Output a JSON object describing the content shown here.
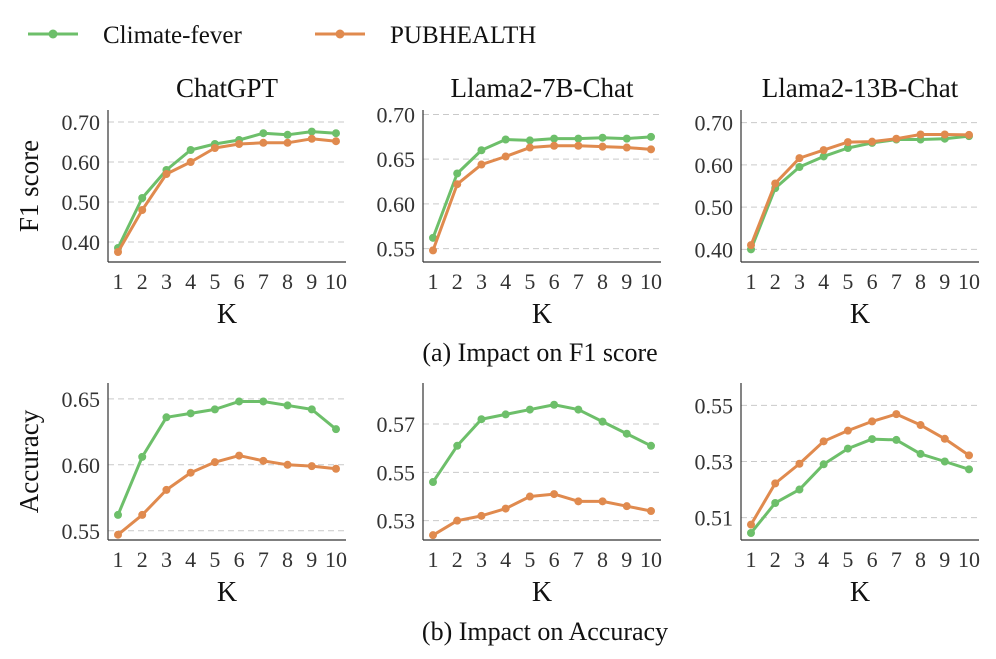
{
  "legend": {
    "items": [
      {
        "label": "Climate-fever",
        "color": "#6dbf6a"
      },
      {
        "label": "PUBHEALTH",
        "color": "#e08a4e"
      }
    ]
  },
  "row_captions": [
    "(a) Impact on F1 score",
    "(b) Impact on Accuracy"
  ],
  "chart_data": [
    {
      "type": "line",
      "title": "ChatGPT",
      "xlabel": "K",
      "ylabel": "F1 score",
      "x": [
        1,
        2,
        3,
        4,
        5,
        6,
        7,
        8,
        9,
        10
      ],
      "ylim": [
        0.35,
        0.73
      ],
      "yticks": [
        0.4,
        0.5,
        0.6,
        0.7
      ],
      "ytick_labels": [
        "0.40",
        "0.50",
        "0.60",
        "0.70"
      ],
      "series": [
        {
          "name": "Climate-fever",
          "values": [
            0.385,
            0.51,
            0.58,
            0.63,
            0.645,
            0.655,
            0.672,
            0.668,
            0.676,
            0.672
          ]
        },
        {
          "name": "PUBHEALTH",
          "values": [
            0.375,
            0.48,
            0.57,
            0.6,
            0.635,
            0.645,
            0.648,
            0.648,
            0.658,
            0.652
          ]
        }
      ]
    },
    {
      "type": "line",
      "title": "Llama2-7B-Chat",
      "xlabel": "K",
      "ylabel": "",
      "x": [
        1,
        2,
        3,
        4,
        5,
        6,
        7,
        8,
        9,
        10
      ],
      "ylim": [
        0.535,
        0.705
      ],
      "yticks": [
        0.55,
        0.6,
        0.65,
        0.7
      ],
      "ytick_labels": [
        "0.55",
        "0.60",
        "0.65",
        "0.70"
      ],
      "series": [
        {
          "name": "Climate-fever",
          "values": [
            0.562,
            0.634,
            0.66,
            0.672,
            0.671,
            0.673,
            0.673,
            0.674,
            0.673,
            0.675
          ]
        },
        {
          "name": "PUBHEALTH",
          "values": [
            0.548,
            0.622,
            0.644,
            0.653,
            0.663,
            0.665,
            0.665,
            0.664,
            0.663,
            0.661
          ]
        }
      ]
    },
    {
      "type": "line",
      "title": "Llama2-13B-Chat",
      "xlabel": "K",
      "ylabel": "",
      "x": [
        1,
        2,
        3,
        4,
        5,
        6,
        7,
        8,
        9,
        10
      ],
      "ylim": [
        0.37,
        0.73
      ],
      "yticks": [
        0.4,
        0.5,
        0.6,
        0.7
      ],
      "ytick_labels": [
        "0.40",
        "0.50",
        "0.60",
        "0.70"
      ],
      "series": [
        {
          "name": "Climate-fever",
          "values": [
            0.4,
            0.545,
            0.595,
            0.62,
            0.64,
            0.652,
            0.66,
            0.66,
            0.662,
            0.668
          ]
        },
        {
          "name": "PUBHEALTH",
          "values": [
            0.41,
            0.556,
            0.616,
            0.635,
            0.654,
            0.655,
            0.662,
            0.672,
            0.672,
            0.671
          ]
        }
      ]
    },
    {
      "type": "line",
      "title": "",
      "xlabel": "K",
      "ylabel": "Accuracy",
      "x": [
        1,
        2,
        3,
        4,
        5,
        6,
        7,
        8,
        9,
        10
      ],
      "ylim": [
        0.543,
        0.662
      ],
      "yticks": [
        0.55,
        0.6,
        0.65
      ],
      "ytick_labels": [
        "0.55",
        "0.60",
        "0.65"
      ],
      "series": [
        {
          "name": "Climate-fever",
          "values": [
            0.562,
            0.606,
            0.636,
            0.639,
            0.642,
            0.648,
            0.648,
            0.645,
            0.642,
            0.627
          ]
        },
        {
          "name": "PUBHEALTH",
          "values": [
            0.547,
            0.562,
            0.581,
            0.594,
            0.602,
            0.607,
            0.603,
            0.6,
            0.599,
            0.597
          ]
        }
      ]
    },
    {
      "type": "line",
      "title": "",
      "xlabel": "K",
      "ylabel": "",
      "x": [
        1,
        2,
        3,
        4,
        5,
        6,
        7,
        8,
        9,
        10
      ],
      "ylim": [
        0.522,
        0.587
      ],
      "yticks": [
        0.53,
        0.55,
        0.57
      ],
      "ytick_labels": [
        "0.53",
        "0.55",
        "0.57"
      ],
      "series": [
        {
          "name": "Climate-fever",
          "values": [
            0.546,
            0.561,
            0.572,
            0.574,
            0.576,
            0.578,
            0.576,
            0.571,
            0.566,
            0.561
          ]
        },
        {
          "name": "PUBHEALTH",
          "values": [
            0.524,
            0.53,
            0.532,
            0.535,
            0.54,
            0.541,
            0.538,
            0.538,
            0.536,
            0.534
          ]
        }
      ]
    },
    {
      "type": "line",
      "title": "",
      "xlabel": "K",
      "ylabel": "",
      "x": [
        1,
        2,
        3,
        4,
        5,
        6,
        7,
        8,
        9,
        10
      ],
      "ylim": [
        0.502,
        0.558
      ],
      "yticks": [
        0.51,
        0.53,
        0.55
      ],
      "ytick_labels": [
        "0.51",
        "0.53",
        "0.55"
      ],
      "series": [
        {
          "name": "Climate-fever",
          "values": [
            0.5045,
            0.5152,
            0.52,
            0.529,
            0.5346,
            0.538,
            0.5377,
            0.5327,
            0.53,
            0.5272
          ]
        },
        {
          "name": "PUBHEALTH",
          "values": [
            0.5075,
            0.5222,
            0.5292,
            0.5372,
            0.541,
            0.5443,
            0.5469,
            0.543,
            0.5381,
            0.5322
          ]
        }
      ]
    }
  ]
}
